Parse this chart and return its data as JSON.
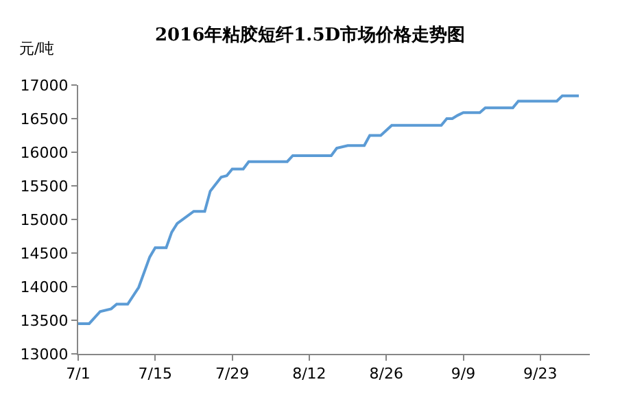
{
  "chart_data": {
    "type": "line",
    "title": "2016年粘胶短纤1.5D市场价格走势图",
    "ylabel": "元/吨",
    "x": [
      "2016-07-01",
      "2016-07-03",
      "2016-07-05",
      "2016-07-07",
      "2016-07-08",
      "2016-07-10",
      "2016-07-12",
      "2016-07-14",
      "2016-07-15",
      "2016-07-17",
      "2016-07-18",
      "2016-07-19",
      "2016-07-22",
      "2016-07-24",
      "2016-07-25",
      "2016-07-27",
      "2016-07-28",
      "2016-07-29",
      "2016-07-31",
      "2016-08-01",
      "2016-08-08",
      "2016-08-09",
      "2016-08-16",
      "2016-08-17",
      "2016-08-19",
      "2016-08-22",
      "2016-08-23",
      "2016-08-25",
      "2016-08-27",
      "2016-09-05",
      "2016-09-06",
      "2016-09-07",
      "2016-09-08",
      "2016-09-09",
      "2016-09-12",
      "2016-09-13",
      "2016-09-18",
      "2016-09-19",
      "2016-09-26",
      "2016-09-27",
      "2016-09-30"
    ],
    "series": [
      {
        "color": "#5b9bd5",
        "values": [
          13450,
          13450,
          13630,
          13670,
          13740,
          13740,
          13990,
          14440,
          14580,
          14580,
          14810,
          14940,
          15120,
          15120,
          15420,
          15630,
          15650,
          15750,
          15750,
          15860,
          15860,
          15950,
          15950,
          16060,
          16100,
          16100,
          16250,
          16250,
          16400,
          16400,
          16500,
          16500,
          16550,
          16590,
          16590,
          16660,
          16660,
          16760,
          16760,
          16840,
          16840
        ]
      }
    ],
    "xlim": [
      "2016-07-01",
      "2016-10-02"
    ],
    "xticks": [
      {
        "value": "2016-07-01",
        "label": "7/1"
      },
      {
        "value": "2016-07-15",
        "label": "7/15"
      },
      {
        "value": "2016-07-29",
        "label": "7/29"
      },
      {
        "value": "2016-08-12",
        "label": "8/12"
      },
      {
        "value": "2016-08-26",
        "label": "8/26"
      },
      {
        "value": "2016-09-09",
        "label": "9/9"
      },
      {
        "value": "2016-09-23",
        "label": "9/23"
      }
    ],
    "ylim": [
      13000,
      17000
    ],
    "yticks": [
      13000,
      13500,
      14000,
      14500,
      15000,
      15500,
      16000,
      16500,
      17000
    ],
    "marker": "none",
    "line_style": "solid"
  }
}
